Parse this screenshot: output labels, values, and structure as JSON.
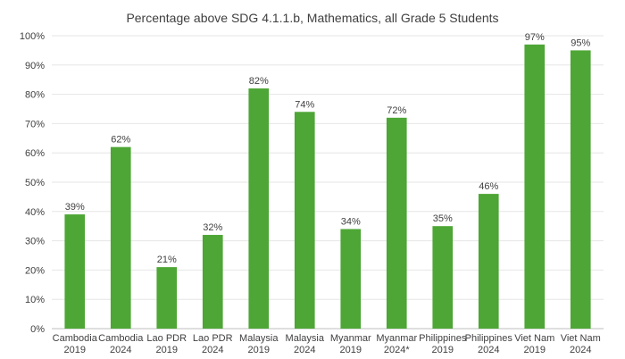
{
  "chart_data": {
    "type": "bar",
    "title": "Percentage above SDG 4.1.1.b, Mathematics, all Grade 5 Students",
    "xlabel": "",
    "ylabel": "",
    "categories": [
      [
        "Cambodia",
        "2019"
      ],
      [
        "Cambodia",
        "2024"
      ],
      [
        "Lao PDR",
        "2019"
      ],
      [
        "Lao PDR",
        "2024"
      ],
      [
        "Malaysia",
        "2019"
      ],
      [
        "Malaysia",
        "2024"
      ],
      [
        "Myanmar",
        "2019"
      ],
      [
        "Myanmar",
        "2024*"
      ],
      [
        "Philippines",
        "2019"
      ],
      [
        "Philippines",
        "2024"
      ],
      [
        "Viet Nam",
        "2019"
      ],
      [
        "Viet Nam",
        "2024"
      ]
    ],
    "values": [
      39,
      62,
      21,
      32,
      82,
      74,
      34,
      72,
      35,
      46,
      97,
      95
    ],
    "data_labels": [
      "39%",
      "62%",
      "21%",
      "32%",
      "82%",
      "74%",
      "34%",
      "72%",
      "35%",
      "46%",
      "97%",
      "95%"
    ],
    "ylim": [
      0,
      100
    ],
    "yticks": [
      0,
      10,
      20,
      30,
      40,
      50,
      60,
      70,
      80,
      90,
      100
    ],
    "ytick_labels": [
      "0%",
      "10%",
      "20%",
      "30%",
      "40%",
      "50%",
      "60%",
      "70%",
      "80%",
      "90%",
      "100%"
    ],
    "grid": true,
    "legend": "none",
    "bar_color": "#4DA635",
    "grid_color": "#e6e6e6",
    "axis_color": "#bfbfbf"
  }
}
